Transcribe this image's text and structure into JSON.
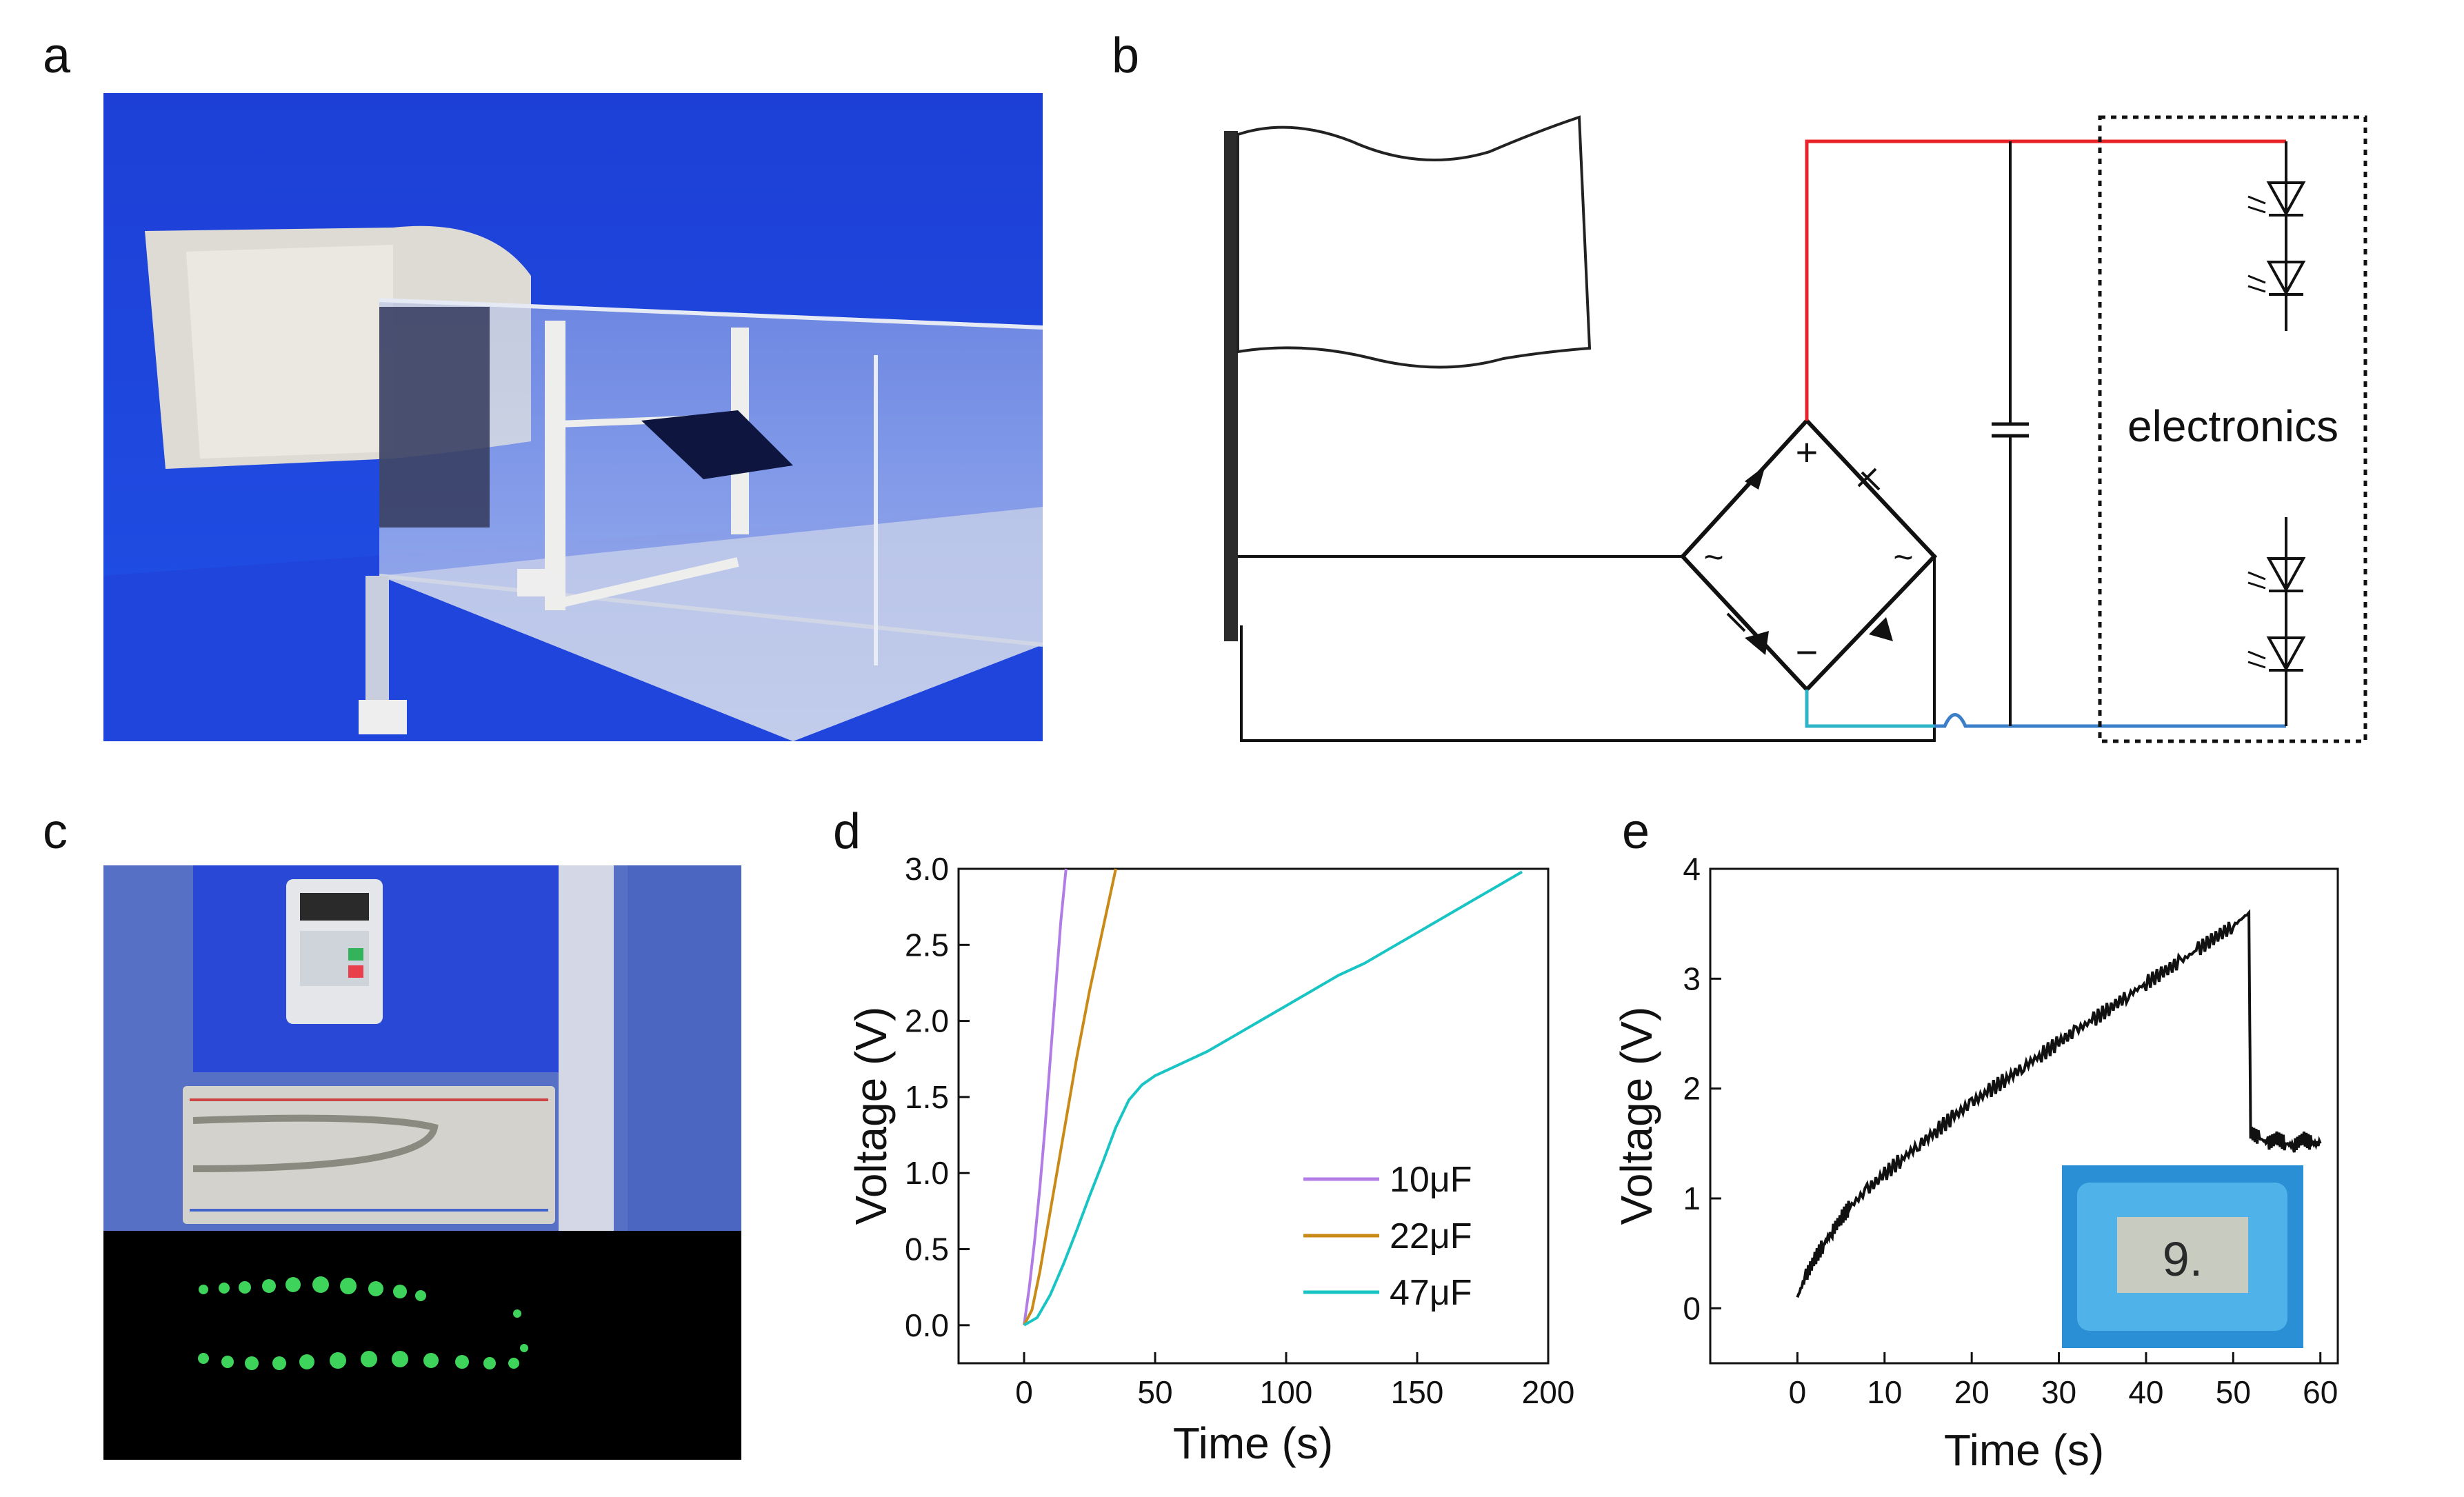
{
  "panel_labels": {
    "a": "a",
    "b": "b",
    "c": "c",
    "d": "d",
    "e": "e"
  },
  "circuit": {
    "electronics_label": "electronics",
    "plus": "+",
    "minus": "−",
    "ac_left": "~",
    "ac_right": "~"
  },
  "colors": {
    "wire_positive": "#e8242a",
    "wire_negative": "#2fb4c8",
    "curve_10uF": "#b27ce6",
    "curve_22uF": "#c98a17",
    "curve_47uF": "#18c4c4",
    "curve_e": "#111111",
    "photo_blue": "#2348d8",
    "thermo_blue": "#2a8fd4"
  },
  "chart_data": [
    {
      "id": "d",
      "type": "line",
      "xlabel": "Time (s)",
      "ylabel": "Voltage (V)",
      "xlim": [
        -25,
        200
      ],
      "ylim": [
        -0.25,
        3.0
      ],
      "xticks": [
        0,
        50,
        100,
        150,
        200
      ],
      "xtick_labels": [
        "0",
        "50",
        "100",
        "150",
        "200"
      ],
      "yticks": [
        0.0,
        0.5,
        1.0,
        1.5,
        2.0,
        2.5,
        3.0
      ],
      "ytick_labels": [
        "0.0",
        "0.5",
        "1.0",
        "1.5",
        "2.0",
        "2.5",
        "3.0"
      ],
      "legend_position": "bottom-right",
      "series": [
        {
          "name": "10μF",
          "color": "#b27ce6",
          "x": [
            0,
            2,
            4,
            6,
            8,
            10,
            12,
            14,
            16
          ],
          "y": [
            0.0,
            0.25,
            0.55,
            0.9,
            1.3,
            1.75,
            2.2,
            2.65,
            3.0
          ]
        },
        {
          "name": "22μF",
          "color": "#c98a17",
          "x": [
            0,
            3,
            6,
            10,
            15,
            20,
            25,
            30,
            35
          ],
          "y": [
            0.0,
            0.1,
            0.35,
            0.75,
            1.25,
            1.75,
            2.2,
            2.6,
            3.0
          ]
        },
        {
          "name": "47μF",
          "color": "#18c4c4",
          "x": [
            0,
            5,
            10,
            15,
            20,
            25,
            30,
            35,
            40,
            45,
            50,
            60,
            70,
            80,
            90,
            100,
            110,
            120,
            130,
            140,
            150,
            160,
            170,
            180,
            190
          ],
          "y": [
            0.0,
            0.05,
            0.2,
            0.4,
            0.62,
            0.85,
            1.07,
            1.3,
            1.48,
            1.58,
            1.64,
            1.72,
            1.8,
            1.9,
            2.0,
            2.1,
            2.2,
            2.3,
            2.38,
            2.48,
            2.58,
            2.68,
            2.78,
            2.88,
            2.98
          ]
        }
      ]
    },
    {
      "id": "e",
      "type": "line",
      "xlabel": "Time (s)",
      "ylabel": "Voltage (V)",
      "xlim": [
        -10,
        62
      ],
      "ylim": [
        -0.5,
        4
      ],
      "xticks": [
        0,
        10,
        20,
        30,
        40,
        50,
        60
      ],
      "xtick_labels": [
        "0",
        "10",
        "20",
        "30",
        "40",
        "50",
        "60"
      ],
      "yticks": [
        0,
        1,
        2,
        3,
        4
      ],
      "ytick_labels": [
        "0",
        "1",
        "2",
        "3",
        "4"
      ],
      "series": [
        {
          "name": "voltage",
          "color": "#111111",
          "x": [
            0,
            1,
            2,
            3,
            4,
            5,
            6,
            8,
            10,
            12,
            14,
            16,
            18,
            20,
            22,
            24,
            26,
            28,
            30,
            32,
            34,
            36,
            38,
            40,
            42,
            44,
            46,
            48,
            50,
            51.8,
            52,
            53,
            54,
            55,
            56,
            57,
            58,
            59,
            60
          ],
          "y": [
            0.1,
            0.3,
            0.45,
            0.58,
            0.7,
            0.82,
            0.92,
            1.08,
            1.22,
            1.36,
            1.49,
            1.62,
            1.75,
            1.87,
            1.98,
            2.09,
            2.2,
            2.31,
            2.42,
            2.53,
            2.63,
            2.74,
            2.85,
            2.96,
            3.06,
            3.16,
            3.27,
            3.38,
            3.48,
            3.6,
            1.6,
            1.55,
            1.5,
            1.55,
            1.5,
            1.48,
            1.55,
            1.5,
            1.5
          ]
        }
      ]
    }
  ]
}
